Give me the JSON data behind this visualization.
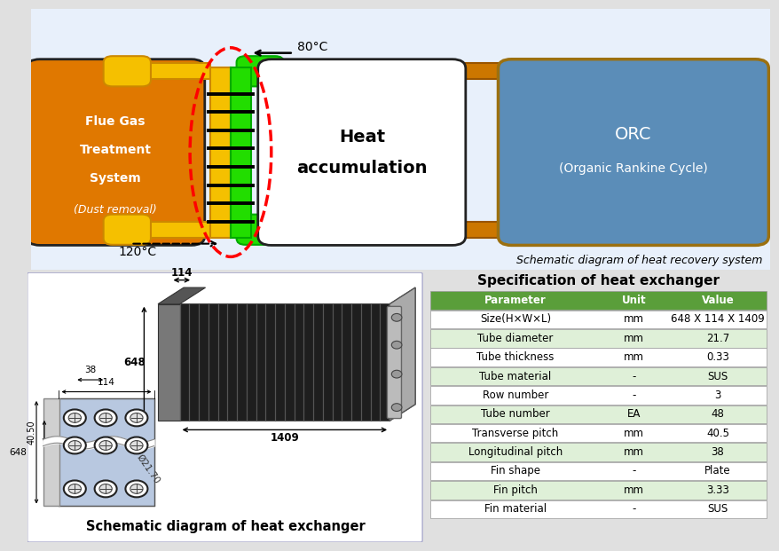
{
  "bg_color": "#e0e0e0",
  "top_panel_bg": "#e8f0fb",
  "flue_gas_color": "#e07800",
  "orc_color": "#5b8db8",
  "orc_border_color": "#9b7010",
  "gold_color": "#f5c000",
  "gold_border": "#cc8800",
  "green_color": "#22dd00",
  "green_border": "#00aa00",
  "orange_pipe_color": "#cc7700",
  "orange_pipe_border": "#995500",
  "flue_gas_text": [
    "Flue Gas",
    "Treatment",
    "System",
    "(Dust removal)"
  ],
  "heat_acc_text": [
    "Heat",
    "accumulation"
  ],
  "orc_text_1": "ORC",
  "orc_text_2": "(Organic Rankine Cycle)",
  "temp_80": "80°C",
  "temp_120": "120°C",
  "table_header_bg": "#5a9e3a",
  "table_odd_bg": "#ffffff",
  "table_even_bg": "#dff0d8",
  "table_title": "Specification of heat exchanger",
  "table_data": [
    [
      "Parameter",
      "Unit",
      "Value"
    ],
    [
      "Size(H×W×L)",
      "mm",
      "648 X 114 X 1409"
    ],
    [
      "Tube diameter",
      "mm",
      "21.7"
    ],
    [
      "Tube thickness",
      "mm",
      "0.33"
    ],
    [
      "Tube material",
      "-",
      "SUS"
    ],
    [
      "Row number",
      "-",
      "3"
    ],
    [
      "Tube number",
      "EA",
      "48"
    ],
    [
      "Transverse pitch",
      "mm",
      "40.5"
    ],
    [
      "Longitudinal pitch",
      "mm",
      "38"
    ],
    [
      "Fin shape",
      "-",
      "Plate"
    ],
    [
      "Fin pitch",
      "mm",
      "3.33"
    ],
    [
      "Fin material",
      "-",
      "SUS"
    ]
  ],
  "schematic_title_top": "Schematic diagram of heat recovery system",
  "schematic_title_bottom": "Schematic diagram of heat exchanger",
  "dim_114_top": "114",
  "dim_648": "648",
  "dim_1409": "1409",
  "dim_38": "38",
  "dim_114_side": "114",
  "dim_40_50": "40.50",
  "dim_648_side": "648",
  "dim_phi": "Ø21.70"
}
